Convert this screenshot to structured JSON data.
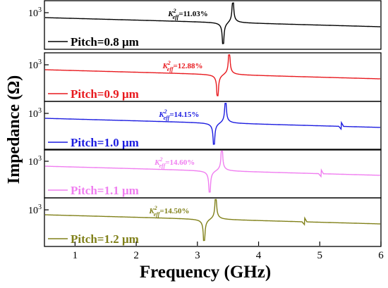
{
  "chart_data": {
    "type": "line",
    "stacked_panels": true,
    "xlabel": "Frequency (GHz)",
    "ylabel": "Impedance (Ω)",
    "xlim": [
      0.5,
      6
    ],
    "x_ticks": [
      "1",
      "2",
      "3",
      "4",
      "5",
      "6"
    ],
    "y_scale": "log",
    "y_tick_label": "10",
    "y_tick_exponent": "3",
    "kt2_base": "K",
    "kt2_sup": "2",
    "kt2_sub": "eff",
    "series": [
      {
        "name": "Pitch=0.8 μm",
        "color": "#000000",
        "resonance_ghz": 3.42,
        "antiresonance_ghz": 3.58,
        "kt2_label": "=11.03%",
        "spurious": []
      },
      {
        "name": "Pitch=0.9 μm",
        "color": "#e8191e",
        "resonance_ghz": 3.33,
        "antiresonance_ghz": 3.52,
        "kt2_label": "=12.88%",
        "spurious": []
      },
      {
        "name": "Pitch=1.0 μm",
        "color": "#1c1ce0",
        "resonance_ghz": 3.27,
        "antiresonance_ghz": 3.46,
        "kt2_label": "=14.15%",
        "spurious": [
          5.35
        ]
      },
      {
        "name": "Pitch=1.1 μm",
        "color": "#f07ef0",
        "resonance_ghz": 3.2,
        "antiresonance_ghz": 3.4,
        "kt2_label": "=14.60%",
        "spurious": [
          5.02
        ]
      },
      {
        "name": "Pitch=1.2 μm",
        "color": "#808019",
        "resonance_ghz": 3.11,
        "antiresonance_ghz": 3.3,
        "kt2_label": "=14.50%",
        "spurious": [
          4.75
        ]
      }
    ]
  }
}
